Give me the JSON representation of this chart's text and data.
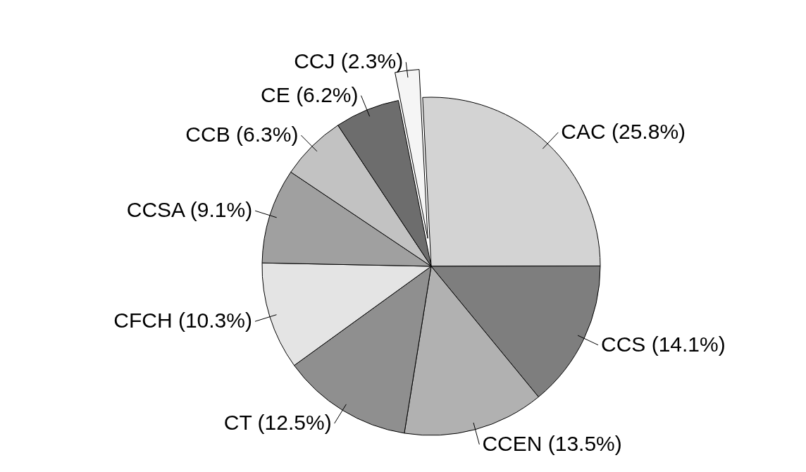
{
  "chart_data": {
    "type": "pie",
    "categories": [
      "CCJ (2.3%)",
      "CAC (25.8%)",
      "CCS (14.1%)",
      "CCEN (13.5%)",
      "CT (12.5%)",
      "CFCH (10.3%)",
      "CCSA (9.1%)",
      "CCB (6.3%)",
      "CE (6.2%)"
    ],
    "values": [
      2.3,
      25.8,
      14.1,
      13.5,
      12.5,
      10.3,
      9.1,
      6.3,
      6.2
    ],
    "colors": [
      "#f5f5f5",
      "#d3d3d3",
      "#7e7e7e",
      "#b1b1b1",
      "#8f8f8f",
      "#e4e4e4",
      "#a0a0a0",
      "#c2c2c2",
      "#6d6d6d"
    ]
  }
}
